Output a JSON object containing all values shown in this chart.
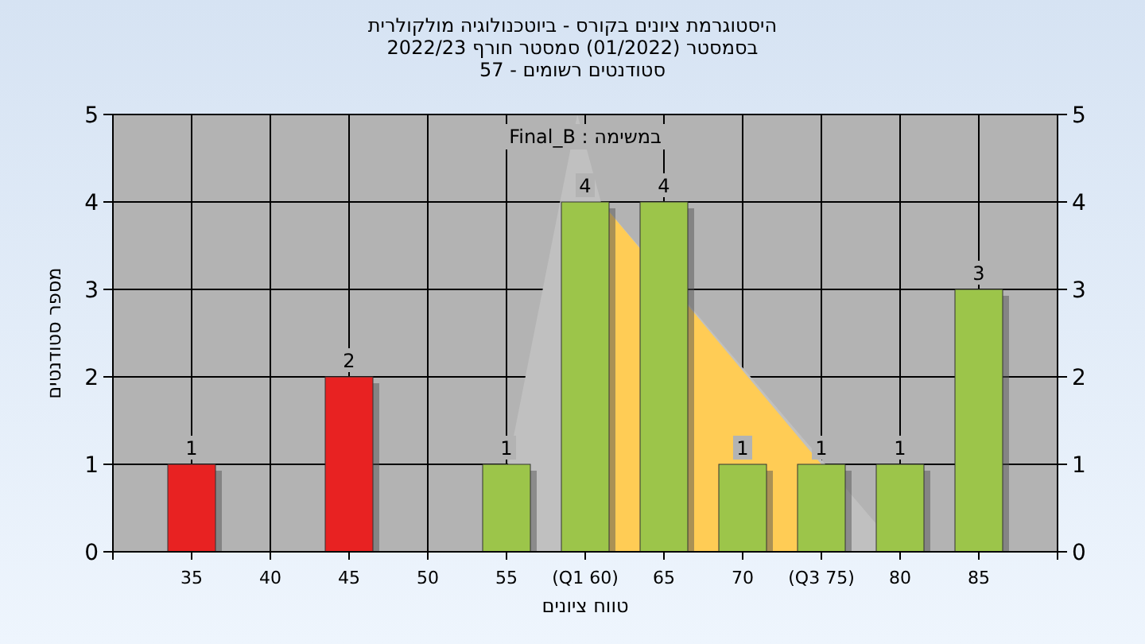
{
  "chart_data": {
    "type": "bar",
    "title": "היסטוגרמת ציונים בקורס - ביוטכנולוגיה מולקולרית",
    "subtitle": [
      "בסמסטר (01/2022) סמסטר חורף 2022/23",
      "סטודנטים רשומים - 57"
    ],
    "xlabel": "טווח ציונים",
    "ylabel": "מספר סטודנטים",
    "annotations": [
      "במשימה : Final_B"
    ],
    "categories": [
      "35",
      "40",
      "45",
      "50",
      "55",
      "(Q1 60)",
      "65",
      "70",
      "(Q3 75)",
      "80",
      "85"
    ],
    "series": [
      {
        "colors": [
          "#e82222",
          null,
          "#e82222",
          null,
          "#9cc54a",
          "#9cc54a",
          "#9cc54a",
          "#9cc54a",
          "#9cc54a",
          "#9cc54a",
          "#9cc54a"
        ],
        "values": [
          1,
          null,
          2,
          null,
          1,
          4,
          4,
          1,
          1,
          1,
          3
        ],
        "value_labels": [
          "1",
          null,
          "2",
          null,
          "1",
          "4",
          "4",
          "1",
          "1",
          "1",
          "3"
        ]
      }
    ],
    "ylim": [
      0,
      5
    ],
    "yticks": [
      0,
      1,
      2,
      3,
      4,
      5
    ],
    "y2lim": [
      0,
      5
    ],
    "y2ticks": [
      0,
      1,
      2,
      3,
      4,
      5
    ],
    "grid": true
  }
}
